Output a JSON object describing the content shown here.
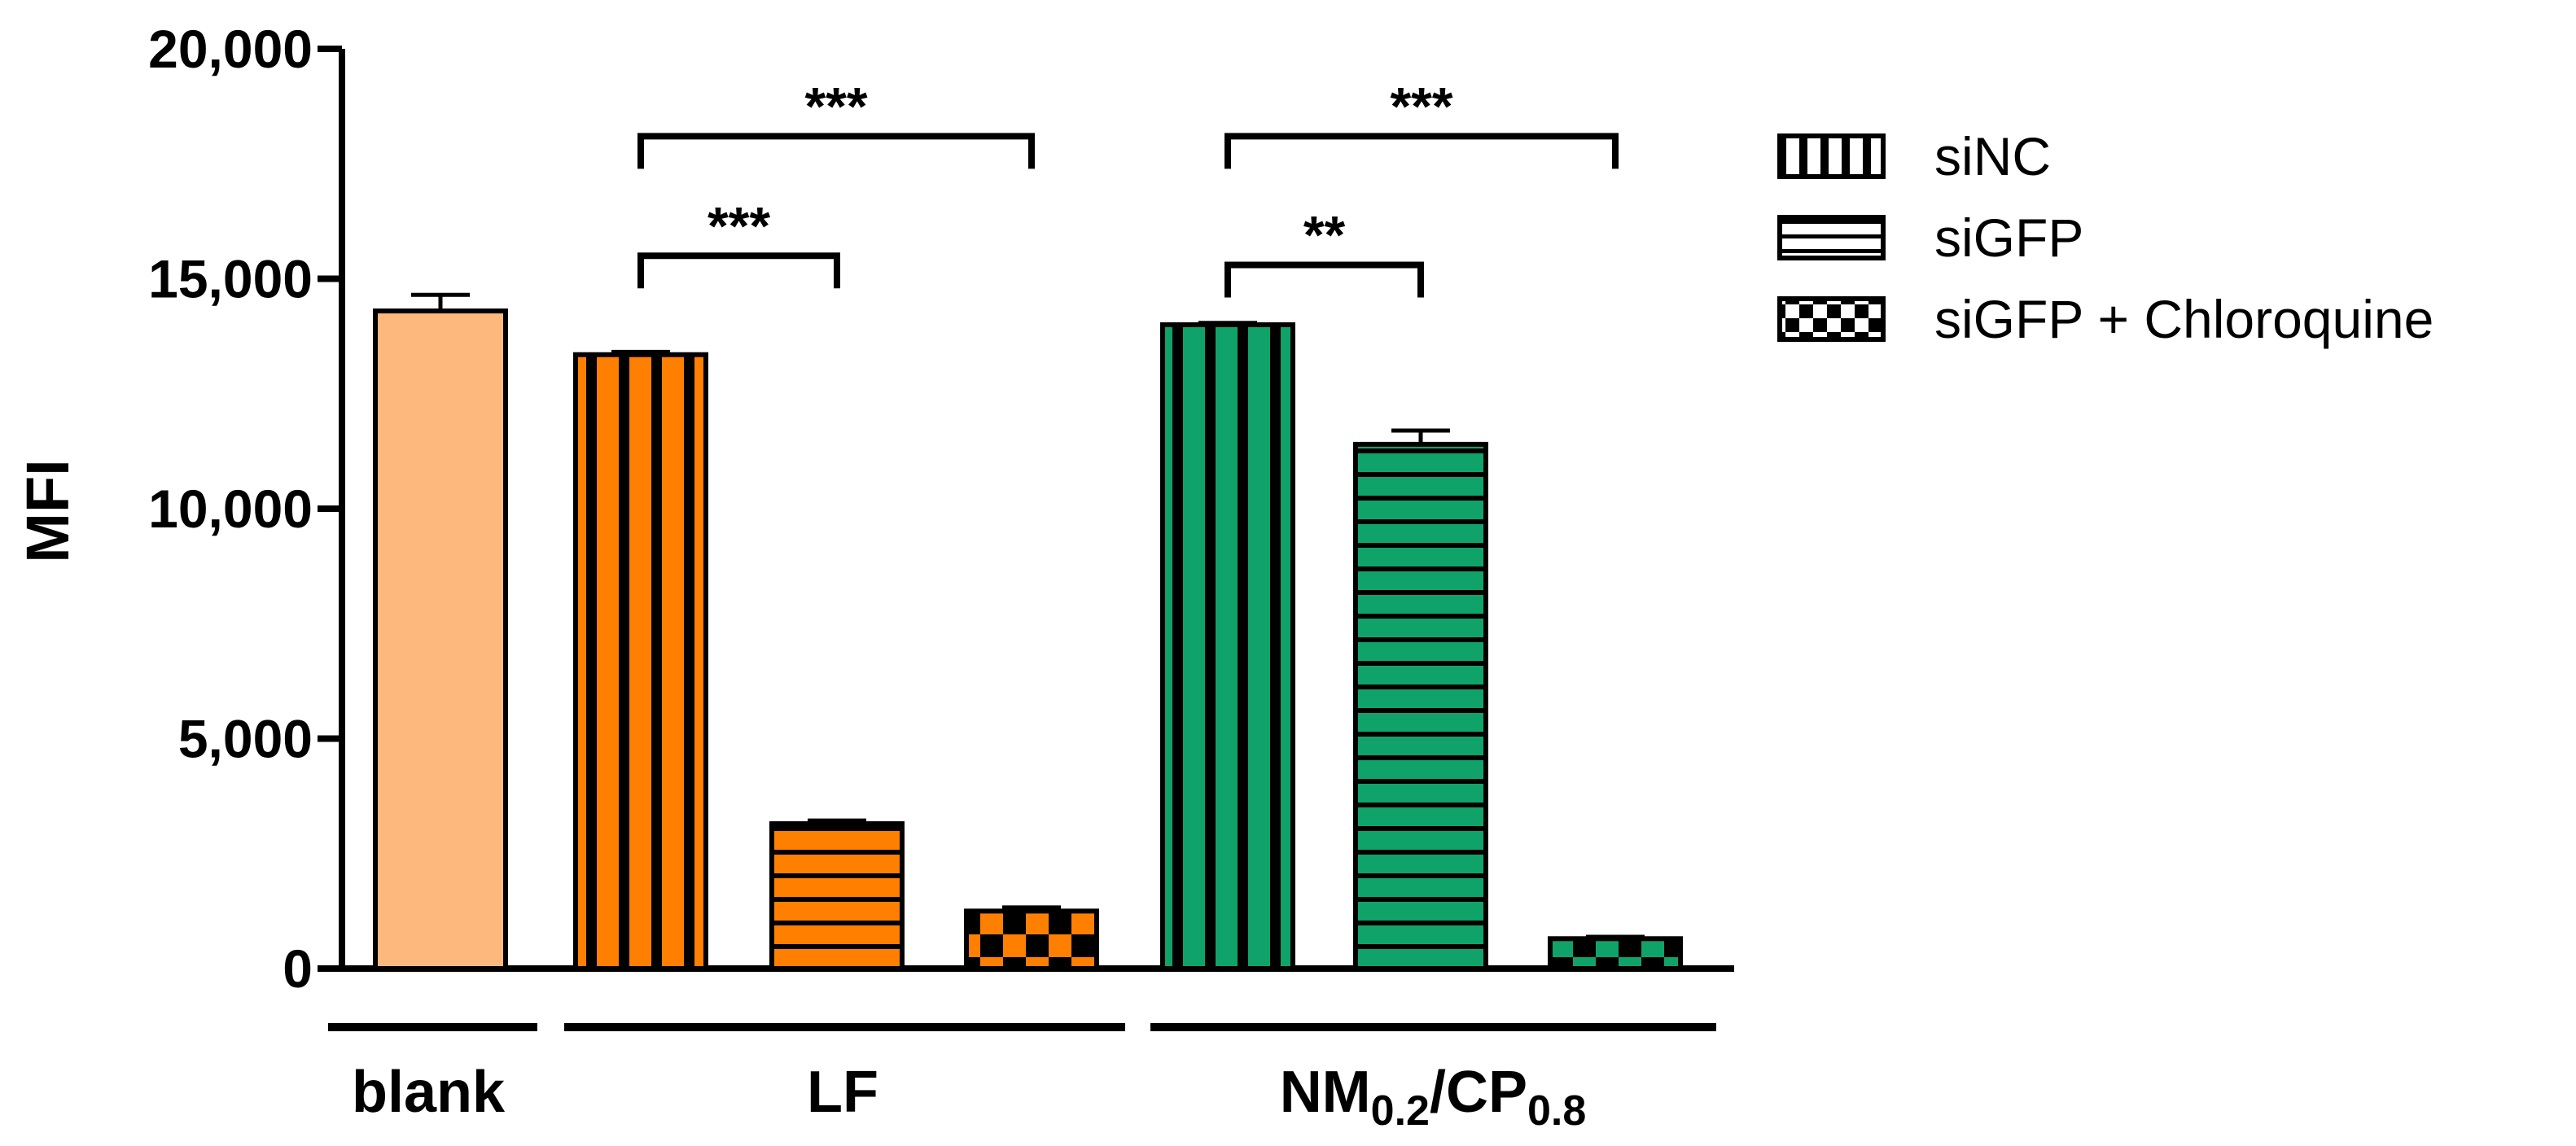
{
  "chart_data": {
    "type": "bar",
    "ylabel": "MFI",
    "ylim": [
      0,
      20000
    ],
    "yticks": [
      0,
      5000,
      10000,
      15000,
      20000
    ],
    "ytick_labels": [
      "0",
      "5,000",
      "10,000",
      "15,000",
      "20,000"
    ],
    "groups": [
      {
        "label": "blank"
      },
      {
        "label": "LF"
      },
      {
        "label": "NM",
        "sub1": "0.2",
        "mid": "/CP",
        "sub2": "0.8"
      }
    ],
    "bars": [
      {
        "group": "blank",
        "series": "",
        "value": 14300,
        "error": 350,
        "color": "#FDB97D",
        "pattern": "solid"
      },
      {
        "group": "LF",
        "series": "siNC",
        "value": 13350,
        "error": 60,
        "color": "#FF8000",
        "pattern": "vertical"
      },
      {
        "group": "LF",
        "series": "siGFP",
        "value": 3150,
        "error": 70,
        "color": "#FF8000",
        "pattern": "horizontal"
      },
      {
        "group": "LF",
        "series": "siGFP + Chloroquine",
        "value": 1250,
        "error": 80,
        "color": "#FF8000",
        "pattern": "checker"
      },
      {
        "group": "NM0.2/CP0.8",
        "series": "siNC",
        "value": 14000,
        "error": 40,
        "color": "#0FA36A",
        "pattern": "vertical"
      },
      {
        "group": "NM0.2/CP0.8",
        "series": "siGFP",
        "value": 11400,
        "error": 300,
        "color": "#0FA36A",
        "pattern": "horizontal"
      },
      {
        "group": "NM0.2/CP0.8",
        "series": "siGFP + Chloroquine",
        "value": 650,
        "error": 40,
        "color": "#0FA36A",
        "pattern": "checker"
      }
    ],
    "significance": [
      {
        "from": 1,
        "to": 2,
        "label": "***",
        "level": 15500
      },
      {
        "from": 1,
        "to": 3,
        "label": "***",
        "level": 18100
      },
      {
        "from": 4,
        "to": 5,
        "label": "**",
        "level": 15300
      },
      {
        "from": 4,
        "to": 6,
        "label": "***",
        "level": 18100
      }
    ],
    "legend": {
      "position": "right",
      "entries": [
        {
          "label": "siNC",
          "pattern": "vertical"
        },
        {
          "label": "siGFP",
          "pattern": "horizontal"
        },
        {
          "label": "siGFP + Chloroquine",
          "pattern": "checker"
        }
      ]
    },
    "grid": false
  }
}
